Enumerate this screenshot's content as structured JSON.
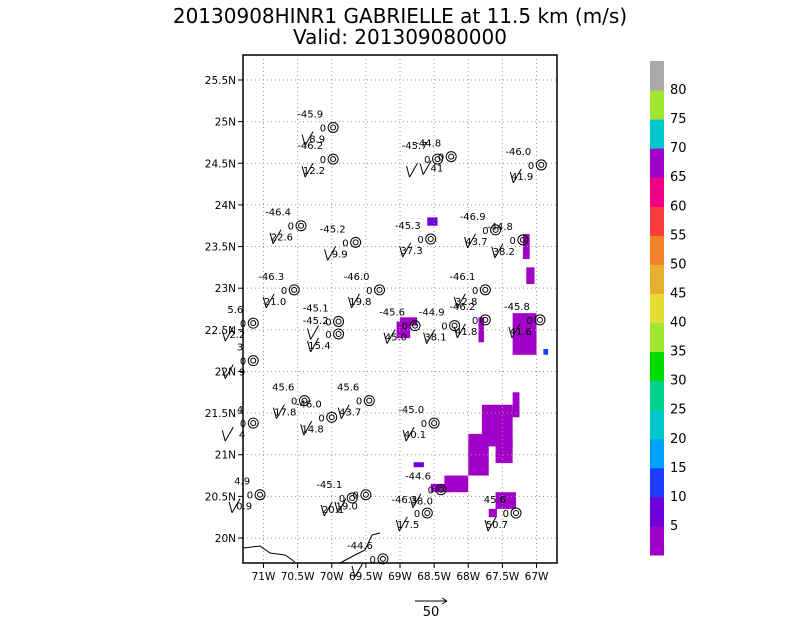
{
  "chart_data": {
    "type": "scatter",
    "title": "20130908HINR1 GABRIELLE at 11.5 km (m/s)",
    "subtitle": "Valid: 201309080000",
    "xlim": [
      -71.3,
      -66.7
    ],
    "ylim": [
      19.7,
      25.8
    ],
    "x_ticks": [
      -71,
      -70.5,
      -70,
      -69.5,
      -69,
      -68.5,
      -68,
      -67.5,
      -67
    ],
    "x_tick_labels": [
      "71W",
      "70.5W",
      "70W",
      "69.5W",
      "69W",
      "68.5W",
      "68W",
      "67.5W",
      "67W"
    ],
    "y_ticks": [
      20,
      20.5,
      21,
      21.5,
      22,
      22.5,
      23,
      23.5,
      24,
      24.5,
      25,
      25.5
    ],
    "y_tick_labels": [
      "20N",
      "20.5N",
      "21N",
      "21.5N",
      "22N",
      "22.5N",
      "23N",
      "23.5N",
      "24N",
      "24.5N",
      "25N",
      "25.5N"
    ],
    "grid": true,
    "reference_vector_label": "50",
    "colorbar": {
      "labels": [
        "5",
        "10",
        "15",
        "20",
        "25",
        "30",
        "35",
        "40",
        "45",
        "50",
        "55",
        "60",
        "65",
        "70",
        "75",
        "80"
      ],
      "colors": [
        "#a000c8",
        "#6e00dc",
        "#1e3cff",
        "#00a0ff",
        "#00c8c8",
        "#00d28c",
        "#00dc00",
        "#a0e632",
        "#e6dc32",
        "#e6af2d",
        "#f08228",
        "#fa3c3c",
        "#f00082",
        "#a000c8",
        "#00c8c8",
        "#a0e632",
        "#aaaaaa"
      ]
    },
    "stations": [
      {
        "lon": -69.98,
        "lat": 24.93,
        "temp": "-45.9",
        "val": "8.9",
        "zero": "0"
      },
      {
        "lon": -69.98,
        "lat": 24.55,
        "temp": "-46.2",
        "val": "12.2",
        "zero": "0"
      },
      {
        "lon": -68.25,
        "lat": 24.58,
        "temp": "-44.8",
        "val": "41",
        "zero": "0"
      },
      {
        "lon": -68.45,
        "lat": 24.55,
        "temp": "-45.7",
        "val": "",
        "zero": "0"
      },
      {
        "lon": -66.93,
        "lat": 24.48,
        "temp": "-46.0",
        "val": "41.9",
        "zero": "0"
      },
      {
        "lon": -70.45,
        "lat": 23.75,
        "temp": "-46.4",
        "val": "22.6",
        "zero": "0"
      },
      {
        "lon": -69.65,
        "lat": 23.55,
        "temp": "-45.2",
        "val": "9.9",
        "zero": "0"
      },
      {
        "lon": -68.55,
        "lat": 23.59,
        "temp": "-45.3",
        "val": "37.3",
        "zero": "0"
      },
      {
        "lon": -67.6,
        "lat": 23.7,
        "temp": "-46.9",
        "val": "43.7",
        "zero": "0"
      },
      {
        "lon": -67.2,
        "lat": 23.58,
        "temp": "-44.8",
        "val": "38.2",
        "zero": "0"
      },
      {
        "lon": -70.55,
        "lat": 22.98,
        "temp": "-46.3",
        "val": "21.0",
        "zero": "0"
      },
      {
        "lon": -69.3,
        "lat": 22.98,
        "temp": "-46.0",
        "val": "19.8",
        "zero": "0"
      },
      {
        "lon": -67.75,
        "lat": 22.98,
        "temp": "-46.1",
        "val": "32.8",
        "zero": "0"
      },
      {
        "lon": -71.15,
        "lat": 22.58,
        "temp": "5.6",
        "val": "2.2",
        "zero": "0"
      },
      {
        "lon": -69.9,
        "lat": 22.6,
        "temp": "-45.1",
        "val": "",
        "zero": "0"
      },
      {
        "lon": -69.9,
        "lat": 22.45,
        "temp": "-45.2",
        "val": "15.4",
        "zero": "0"
      },
      {
        "lon": -68.78,
        "lat": 22.55,
        "temp": "-45.6",
        "val": "45.0",
        "zero": "0"
      },
      {
        "lon": -68.2,
        "lat": 22.55,
        "temp": "-44.9",
        "val": "38.1",
        "zero": "0"
      },
      {
        "lon": -67.75,
        "lat": 22.62,
        "temp": "-46.2",
        "val": "41.8",
        "zero": "0"
      },
      {
        "lon": -66.95,
        "lat": 22.62,
        "temp": "-45.8",
        "val": "41.6",
        "zero": "0"
      },
      {
        "lon": -71.15,
        "lat": 22.13,
        "temp": "3",
        "val": "9",
        "zero": "0"
      },
      {
        "lon": -70.4,
        "lat": 21.65,
        "temp": "45.6",
        "val": "17.8",
        "zero": "0"
      },
      {
        "lon": -69.45,
        "lat": 21.65,
        "temp": "45.6",
        "val": "43.7",
        "zero": "0"
      },
      {
        "lon": -70.0,
        "lat": 21.45,
        "temp": "-46.0",
        "val": "14.8",
        "zero": "0"
      },
      {
        "lon": -71.15,
        "lat": 21.38,
        "temp": "4",
        "val": "4",
        "zero": "0"
      },
      {
        "lon": -68.5,
        "lat": 21.38,
        "temp": "-45.0",
        "val": "40.1",
        "zero": "0"
      },
      {
        "lon": -71.05,
        "lat": 20.52,
        "temp": "4.9",
        "val": "0.9",
        "zero": "0"
      },
      {
        "lon": -69.7,
        "lat": 20.48,
        "temp": "-45.1",
        "val": "20.1",
        "zero": "0"
      },
      {
        "lon": -69.5,
        "lat": 20.52,
        "temp": "",
        "val": "19.0",
        "zero": "0"
      },
      {
        "lon": -68.4,
        "lat": 20.58,
        "temp": "-44.6",
        "val": "38.0",
        "zero": "0"
      },
      {
        "lon": -68.6,
        "lat": 20.3,
        "temp": "-46.3",
        "val": "17.5",
        "zero": "0"
      },
      {
        "lon": -67.3,
        "lat": 20.3,
        "temp": "45.6",
        "val": "50.7",
        "zero": "0"
      },
      {
        "lon": -69.25,
        "lat": 19.75,
        "temp": "-44.6",
        "val": "",
        "zero": "0"
      }
    ],
    "shaded_cells": [
      {
        "lon": -68.6,
        "lat": 23.75,
        "w": 0.15,
        "h": 0.1,
        "level": 10
      },
      {
        "lon": -67.2,
        "lat": 23.35,
        "w": 0.1,
        "h": 0.3,
        "level": 70
      },
      {
        "lon": -67.15,
        "lat": 23.05,
        "w": 0.12,
        "h": 0.2,
        "level": 70
      },
      {
        "lon": -69.0,
        "lat": 22.55,
        "w": 0.25,
        "h": 0.1,
        "level": 70
      },
      {
        "lon": -69.05,
        "lat": 22.4,
        "w": 0.2,
        "h": 0.2,
        "level": 70
      },
      {
        "lon": -67.85,
        "lat": 22.35,
        "w": 0.08,
        "h": 0.3,
        "level": 70
      },
      {
        "lon": -67.35,
        "lat": 22.2,
        "w": 0.35,
        "h": 0.5,
        "level": 70
      },
      {
        "lon": -66.9,
        "lat": 22.2,
        "w": 0.07,
        "h": 0.07,
        "level": 15
      },
      {
        "lon": -67.8,
        "lat": 21.1,
        "w": 0.45,
        "h": 0.5,
        "level": 70
      },
      {
        "lon": -67.6,
        "lat": 20.9,
        "w": 0.25,
        "h": 0.3,
        "level": 70
      },
      {
        "lon": -68.0,
        "lat": 20.75,
        "w": 0.3,
        "h": 0.5,
        "level": 70
      },
      {
        "lon": -68.35,
        "lat": 20.55,
        "w": 0.35,
        "h": 0.2,
        "level": 70
      },
      {
        "lon": -67.6,
        "lat": 20.35,
        "w": 0.3,
        "h": 0.2,
        "level": 70
      },
      {
        "lon": -67.7,
        "lat": 20.25,
        "w": 0.12,
        "h": 0.1,
        "level": 70
      },
      {
        "lon": -67.35,
        "lat": 21.45,
        "w": 0.1,
        "h": 0.3,
        "level": 70
      },
      {
        "lon": -68.8,
        "lat": 20.85,
        "w": 0.15,
        "h": 0.06,
        "level": 10
      },
      {
        "lon": -68.55,
        "lat": 20.55,
        "w": 0.3,
        "h": 0.1,
        "level": 5
      }
    ]
  }
}
